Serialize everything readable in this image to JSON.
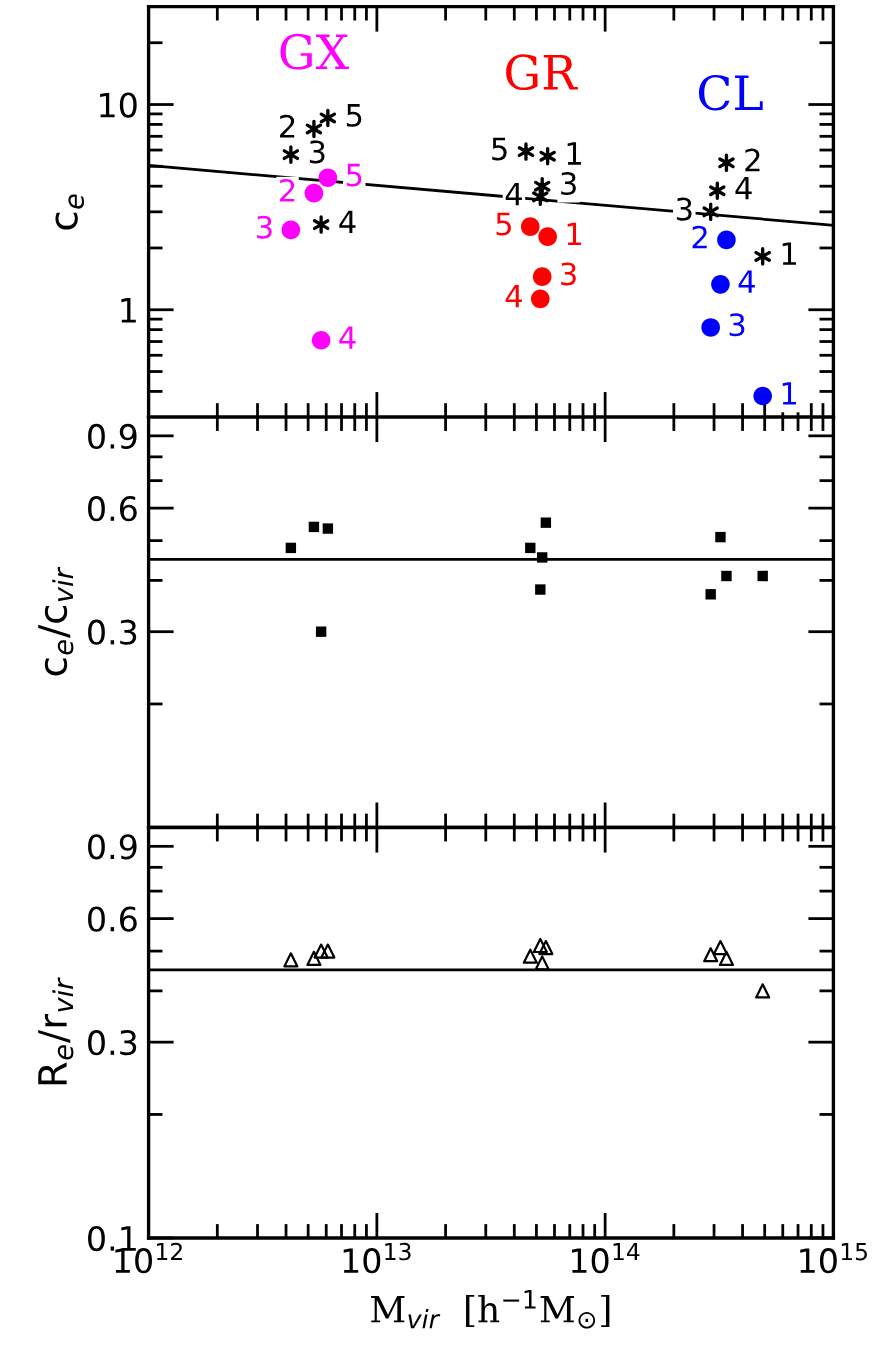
{
  "chart_data": [
    {
      "type": "scatter",
      "ylabel": "c$_{e}$",
      "log": "xy",
      "tick_labels": "y",
      "grid": false,
      "legend": false,
      "xlim": [
        1000000000000.0,
        1000000000000000.0
      ],
      "ylim": [
        0.3,
        30
      ],
      "xticks": [
        1000000000000.0,
        {
          "value": 2000000000000.0,
          "label": null
        },
        {
          "value": 3000000000000.0,
          "label": null
        },
        {
          "value": 4000000000000.0,
          "label": null
        },
        {
          "value": 5000000000000.0,
          "label": null
        },
        {
          "value": 6000000000000.0,
          "label": null
        },
        {
          "value": 7000000000000.0,
          "label": null
        },
        {
          "value": 8000000000000.0,
          "label": null
        },
        {
          "value": 9000000000000.0,
          "label": null
        },
        10000000000000.0,
        {
          "value": 20000000000000.0,
          "label": null
        },
        {
          "value": 30000000000000.0,
          "label": null
        },
        {
          "value": 40000000000000.0,
          "label": null
        },
        {
          "value": 50000000000000.0,
          "label": null
        },
        {
          "value": 60000000000000.0,
          "label": null
        },
        {
          "value": 70000000000000.0,
          "label": null
        },
        {
          "value": 80000000000000.0,
          "label": null
        },
        {
          "value": 90000000000000.0,
          "label": null
        },
        100000000000000.0,
        {
          "value": 200000000000000.0,
          "label": null
        },
        {
          "value": 300000000000000.0,
          "label": null
        },
        {
          "value": 400000000000000.0,
          "label": null
        },
        {
          "value": 500000000000000.0,
          "label": null
        },
        {
          "value": 600000000000000.0,
          "label": null
        },
        {
          "value": 700000000000000.0,
          "label": null
        },
        {
          "value": 800000000000000.0,
          "label": null
        },
        {
          "value": 900000000000000.0,
          "label": null
        },
        1000000000000000.0
      ],
      "yticks": [
        {
          "value": 0.4,
          "label": null
        },
        {
          "value": 0.5,
          "label": null
        },
        {
          "value": 0.6,
          "label": null
        },
        {
          "value": 0.7,
          "label": null
        },
        {
          "value": 0.8,
          "label": null
        },
        {
          "value": 0.9,
          "label": null
        },
        1,
        {
          "value": 2,
          "label": null
        },
        {
          "value": 3,
          "label": null
        },
        {
          "value": 4,
          "label": null
        },
        {
          "value": 5,
          "label": null
        },
        {
          "value": 6,
          "label": null
        },
        {
          "value": 7,
          "label": null
        },
        {
          "value": 8,
          "label": null
        },
        {
          "value": 9,
          "label": null
        },
        10,
        {
          "value": 20,
          "label": null
        },
        {
          "value": 30,
          "label": null
        }
      ],
      "series": [
        {
          "type": "line",
          "color": "#000000",
          "x": [
            1000000000000.0,
            1000000000000000.0
          ],
          "values": [
            5.05,
            2.58
          ],
          "marker": "none",
          "line_style": "solid"
        },
        {
          "color": "#000000",
          "marker": "cross",
          "x": [
            4200000000000.0,
            5700000000000.0,
            5300000000000.0,
            6100000000000.0
          ],
          "values": [
            5.7,
            2.6,
            7.6,
            8.6
          ]
        },
        {
          "color": "#000000",
          "marker": "cross",
          "x": [
            45000000000000.0,
            56000000000000.0,
            53000000000000.0,
            52000000000000.0
          ],
          "values": [
            5.9,
            5.6,
            4.0,
            3.55
          ]
        },
        {
          "color": "#000000",
          "marker": "cross",
          "x": [
            340000000000000.0,
            310000000000000.0,
            290000000000000.0,
            490000000000000.0
          ],
          "values": [
            5.2,
            3.8,
            3.0,
            1.82
          ]
        },
        {
          "name": "GX",
          "color": "#ff00ff",
          "marker": "circle",
          "x": [
            4200000000000.0,
            5700000000000.0,
            5300000000000.0,
            6100000000000.0
          ],
          "values": [
            2.45,
            0.71,
            3.7,
            4.4
          ]
        },
        {
          "name": "GR",
          "color": "#ff0000",
          "marker": "circle",
          "x": [
            47000000000000.0,
            56000000000000.0,
            53000000000000.0,
            52000000000000.0
          ],
          "values": [
            2.54,
            2.27,
            1.45,
            1.13
          ]
        },
        {
          "name": "CL",
          "color": "#0000ff",
          "marker": "circle",
          "x": [
            340000000000000.0,
            320000000000000.0,
            290000000000000.0,
            490000000000000.0
          ],
          "values": [
            2.19,
            1.33,
            0.82,
            0.38
          ]
        }
      ],
      "annotations": [
        {
          "text": "3",
          "x": 4200000000000.0,
          "y": 5.7
        },
        {
          "text": "4",
          "x": 5700000000000.0,
          "y": 2.6
        },
        {
          "text": "2",
          "x": 5300000000000.0,
          "y": 7.6
        },
        {
          "text": "5",
          "x": 6100000000000.0,
          "y": 8.6
        },
        {
          "text": "5",
          "x": 45000000000000.0,
          "y": 5.9
        },
        {
          "text": "1",
          "x": 56000000000000.0,
          "y": 5.6
        },
        {
          "text": "3",
          "x": 53000000000000.0,
          "y": 4.0
        },
        {
          "text": "4",
          "x": 52000000000000.0,
          "y": 3.55
        },
        {
          "text": "2",
          "x": 340000000000000.0,
          "y": 5.2
        },
        {
          "text": "4",
          "x": 310000000000000.0,
          "y": 3.8
        },
        {
          "text": "3",
          "x": 290000000000000.0,
          "y": 3.0
        },
        {
          "text": "1",
          "x": 490000000000000.0,
          "y": 1.82
        },
        {
          "text": "3",
          "x": 4200000000000.0,
          "y": 2.45
        },
        {
          "text": "4",
          "x": 5700000000000.0,
          "y": 0.71
        },
        {
          "text": "2",
          "x": 5300000000000.0,
          "y": 3.7
        },
        {
          "text": "5",
          "x": 6100000000000.0,
          "y": 4.4
        },
        {
          "text": "5",
          "x": 47000000000000.0,
          "y": 2.54
        },
        {
          "text": "1",
          "x": 56000000000000.0,
          "y": 2.27
        },
        {
          "text": "3",
          "x": 53000000000000.0,
          "y": 1.45
        },
        {
          "text": "4",
          "x": 52000000000000.0,
          "y": 1.13
        },
        {
          "text": "2",
          "x": 340000000000000.0,
          "y": 2.19
        },
        {
          "text": "4",
          "x": 320000000000000.0,
          "y": 1.33
        },
        {
          "text": "3",
          "x": 290000000000000.0,
          "y": 0.82
        },
        {
          "text": "1",
          "x": 490000000000000.0,
          "y": 0.38
        }
      ]
    },
    {
      "type": "scatter",
      "ylabel": "c$_{e}$/c$_{vir}$",
      "log": "xy",
      "tick_labels": "y",
      "grid": false,
      "legend": false,
      "xlim": [
        1000000000000.0,
        1000000000000000.0
      ],
      "ylim": [
        0.1,
        1
      ],
      "xticks": [
        1000000000000.0,
        {
          "value": 2000000000000.0,
          "label": null
        },
        {
          "value": 3000000000000.0,
          "label": null
        },
        {
          "value": 4000000000000.0,
          "label": null
        },
        {
          "value": 5000000000000.0,
          "label": null
        },
        {
          "value": 6000000000000.0,
          "label": null
        },
        {
          "value": 7000000000000.0,
          "label": null
        },
        {
          "value": 8000000000000.0,
          "label": null
        },
        {
          "value": 9000000000000.0,
          "label": null
        },
        10000000000000.0,
        {
          "value": 20000000000000.0,
          "label": null
        },
        {
          "value": 30000000000000.0,
          "label": null
        },
        {
          "value": 40000000000000.0,
          "label": null
        },
        {
          "value": 50000000000000.0,
          "label": null
        },
        {
          "value": 60000000000000.0,
          "label": null
        },
        {
          "value": 70000000000000.0,
          "label": null
        },
        {
          "value": 80000000000000.0,
          "label": null
        },
        {
          "value": 90000000000000.0,
          "label": null
        },
        100000000000000.0,
        {
          "value": 200000000000000.0,
          "label": null
        },
        {
          "value": 300000000000000.0,
          "label": null
        },
        {
          "value": 400000000000000.0,
          "label": null
        },
        {
          "value": 500000000000000.0,
          "label": null
        },
        {
          "value": 600000000000000.0,
          "label": null
        },
        {
          "value": 700000000000000.0,
          "label": null
        },
        {
          "value": 800000000000000.0,
          "label": null
        },
        {
          "value": 900000000000000.0,
          "label": null
        },
        1000000000000000.0
      ],
      "yticks": [
        {
          "value": 0.2,
          "label": null
        },
        0.3,
        {
          "value": 0.4,
          "label": null
        },
        {
          "value": 0.5,
          "label": null
        },
        0.6,
        {
          "value": 0.7,
          "label": null
        },
        {
          "value": 0.8,
          "label": null
        },
        0.9
      ],
      "ref_lines": [
        {
          "axis": "y",
          "value": 0.45,
          "color": "#000000",
          "line_style": "solid"
        }
      ],
      "series": [
        {
          "color": "#000000",
          "marker": "square",
          "x": [
            4200000000000.0,
            5300000000000.0,
            6100000000000.0,
            5700000000000.0,
            47000000000000.0,
            53000000000000.0,
            55000000000000.0,
            52000000000000.0,
            290000000000000.0,
            320000000000000.0,
            340000000000000.0,
            490000000000000.0
          ],
          "values": [
            0.48,
            0.54,
            0.535,
            0.3,
            0.48,
            0.455,
            0.553,
            0.38,
            0.37,
            0.51,
            0.41,
            0.41
          ]
        }
      ]
    },
    {
      "type": "scatter",
      "ylabel": "R$_{e}$/r$_{vir}$",
      "xlabel": "M$_{vir}$  [h$^{−1}$M$_{⊙}$]",
      "log": "xy",
      "grid": false,
      "legend": false,
      "xlim": [
        1000000000000.0,
        1000000000000000.0
      ],
      "ylim": [
        0.1,
        1
      ],
      "xticks": [
        {
          "value": 1000000000000.0,
          "label": "10$^{12}$"
        },
        {
          "value": 2000000000000.0,
          "label": null
        },
        {
          "value": 3000000000000.0,
          "label": null
        },
        {
          "value": 4000000000000.0,
          "label": null
        },
        {
          "value": 5000000000000.0,
          "label": null
        },
        {
          "value": 6000000000000.0,
          "label": null
        },
        {
          "value": 7000000000000.0,
          "label": null
        },
        {
          "value": 8000000000000.0,
          "label": null
        },
        {
          "value": 9000000000000.0,
          "label": null
        },
        {
          "value": 10000000000000.0,
          "label": "10$^{13}$"
        },
        {
          "value": 20000000000000.0,
          "label": null
        },
        {
          "value": 30000000000000.0,
          "label": null
        },
        {
          "value": 40000000000000.0,
          "label": null
        },
        {
          "value": 50000000000000.0,
          "label": null
        },
        {
          "value": 60000000000000.0,
          "label": null
        },
        {
          "value": 70000000000000.0,
          "label": null
        },
        {
          "value": 80000000000000.0,
          "label": null
        },
        {
          "value": 90000000000000.0,
          "label": null
        },
        {
          "value": 100000000000000.0,
          "label": "10$^{14}$"
        },
        {
          "value": 200000000000000.0,
          "label": null
        },
        {
          "value": 300000000000000.0,
          "label": null
        },
        {
          "value": 400000000000000.0,
          "label": null
        },
        {
          "value": 500000000000000.0,
          "label": null
        },
        {
          "value": 600000000000000.0,
          "label": null
        },
        {
          "value": 700000000000000.0,
          "label": null
        },
        {
          "value": 800000000000000.0,
          "label": null
        },
        {
          "value": 900000000000000.0,
          "label": null
        },
        {
          "value": 1000000000000000.0,
          "label": "10$^{15}$"
        }
      ],
      "yticks": [
        0.1,
        {
          "value": 0.2,
          "label": null
        },
        0.3,
        {
          "value": 0.4,
          "label": null
        },
        {
          "value": 0.5,
          "label": null
        },
        0.6,
        {
          "value": 0.7,
          "label": null
        },
        {
          "value": 0.8,
          "label": null
        },
        0.9
      ],
      "ref_lines": [
        {
          "axis": "y",
          "value": 0.45,
          "color": "#000000",
          "line_style": "solid"
        }
      ],
      "series": [
        {
          "color": "#000000",
          "marker": "triangle",
          "x": [
            4200000000000.0,
            5300000000000.0,
            5700000000000.0,
            6100000000000.0,
            47000000000000.0,
            52000000000000.0,
            55000000000000.0,
            53000000000000.0,
            290000000000000.0,
            320000000000000.0,
            340000000000000.0,
            490000000000000.0
          ],
          "values": [
            0.476,
            0.48,
            0.5,
            0.5,
            0.486,
            0.516,
            0.51,
            0.468,
            0.49,
            0.51,
            0.48,
            0.4
          ]
        }
      ]
    }
  ]
}
